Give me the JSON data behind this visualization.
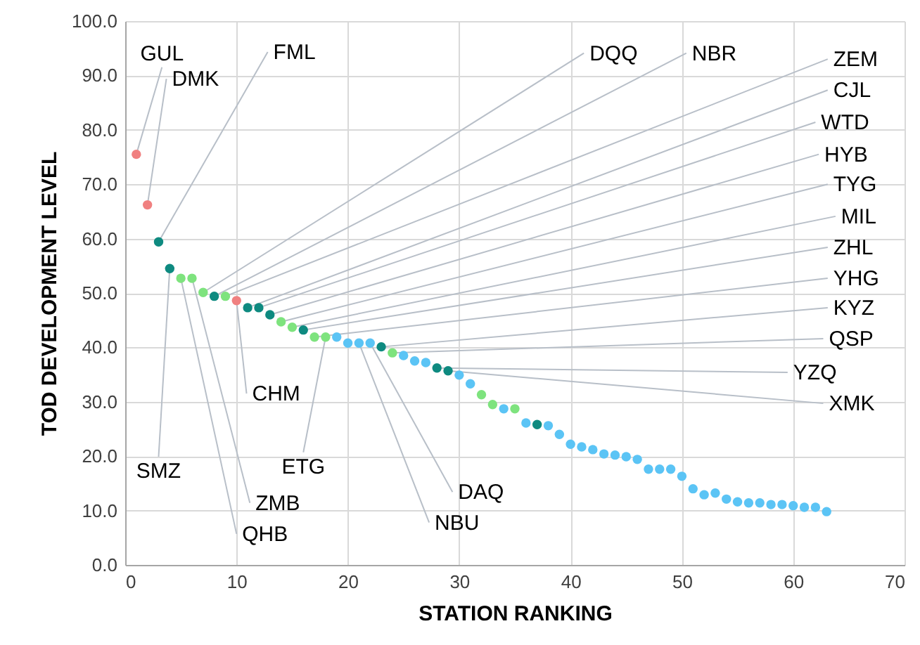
{
  "chart_data": {
    "type": "scatter",
    "xlabel": "STATION RANKING",
    "ylabel": "TOD DEVELOPMENT LEVEL",
    "x": [
      1,
      2,
      3,
      4,
      5,
      6,
      7,
      8,
      9,
      10,
      11,
      12,
      13,
      14,
      15,
      16,
      17,
      18,
      19,
      20,
      21,
      22,
      23,
      24,
      25,
      26,
      27,
      28,
      29,
      30,
      31,
      32,
      33,
      34,
      35,
      36,
      37,
      38,
      39,
      40,
      41,
      42,
      43,
      44,
      45,
      46,
      47,
      48,
      49,
      50,
      51,
      52,
      53,
      54,
      55,
      56,
      57,
      58,
      59,
      60,
      61,
      62,
      63
    ],
    "values": [
      75.5,
      66.2,
      59.4,
      54.5,
      52.7,
      52.7,
      50.1,
      49.4,
      49.4,
      48.6,
      47.3,
      47.3,
      46.0,
      44.7,
      43.7,
      43.2,
      41.9,
      41.9,
      41.9,
      40.8,
      40.8,
      40.8,
      40.1,
      39.0,
      38.5,
      37.5,
      37.2,
      36.2,
      35.7,
      34.9,
      33.3,
      31.3,
      29.5,
      28.7,
      28.7,
      26.1,
      25.8,
      25.6,
      24.0,
      22.2,
      21.7,
      21.2,
      20.4,
      20.2,
      19.9,
      19.4,
      17.6,
      17.6,
      17.6,
      16.3,
      14.0,
      12.9,
      13.2,
      12.1,
      11.6,
      11.4,
      11.4,
      11.1,
      11.1,
      10.9,
      10.6,
      10.6,
      9.8
    ],
    "colors": [
      "#f08080",
      "#f08080",
      "#0e8a80",
      "#0e8a80",
      "#7ee37e",
      "#7ee37e",
      "#7ee37e",
      "#0e8a80",
      "#7ee37e",
      "#f08080",
      "#0e8a80",
      "#0e8a80",
      "#0e8a80",
      "#7ee37e",
      "#7ee37e",
      "#0e8a80",
      "#7ee37e",
      "#7ee37e",
      "#5bc4f5",
      "#5bc4f5",
      "#5bc4f5",
      "#5bc4f5",
      "#0e8a80",
      "#7ee37e",
      "#5bc4f5",
      "#5bc4f5",
      "#5bc4f5",
      "#0e8a80",
      "#0e8a80",
      "#5bc4f5",
      "#5bc4f5",
      "#7ee37e",
      "#7ee37e",
      "#5bc4f5",
      "#7ee37e",
      "#5bc4f5",
      "#0e8a80",
      "#5bc4f5",
      "#5bc4f5",
      "#5bc4f5",
      "#5bc4f5",
      "#5bc4f5",
      "#5bc4f5",
      "#5bc4f5",
      "#5bc4f5",
      "#5bc4f5",
      "#5bc4f5",
      "#5bc4f5",
      "#5bc4f5",
      "#5bc4f5",
      "#5bc4f5",
      "#5bc4f5",
      "#5bc4f5",
      "#5bc4f5",
      "#5bc4f5",
      "#5bc4f5",
      "#5bc4f5",
      "#5bc4f5",
      "#5bc4f5",
      "#5bc4f5",
      "#5bc4f5",
      "#5bc4f5",
      "#5bc4f5"
    ],
    "annotations": [
      {
        "text": "GUL",
        "x": 1,
        "y": 75.5
      },
      {
        "text": "DMK",
        "x": 2,
        "y": 66.2
      },
      {
        "text": "FML",
        "x": 3,
        "y": 59.4
      },
      {
        "text": "DQQ",
        "x": 7,
        "y": 50.1
      },
      {
        "text": "NBR",
        "x": 8,
        "y": 49.4
      },
      {
        "text": "ZEM",
        "x": 9,
        "y": 49.4
      },
      {
        "text": "CJL",
        "x": 11,
        "y": 47.3
      },
      {
        "text": "WTD",
        "x": 12,
        "y": 47.3
      },
      {
        "text": "HYB",
        "x": 13,
        "y": 46.0
      },
      {
        "text": "TYG",
        "x": 14,
        "y": 44.7
      },
      {
        "text": "MIL",
        "x": 15,
        "y": 43.7
      },
      {
        "text": "ZHL",
        "x": 16,
        "y": 43.2
      },
      {
        "text": "YHG",
        "x": 17,
        "y": 41.9
      },
      {
        "text": "KYZ",
        "x": 23,
        "y": 40.1
      },
      {
        "text": "QSP",
        "x": 24,
        "y": 39.0
      },
      {
        "text": "YZQ",
        "x": 28,
        "y": 36.2
      },
      {
        "text": "XMK",
        "x": 29,
        "y": 35.7
      },
      {
        "text": "SMZ",
        "x": 4,
        "y": 54.5
      },
      {
        "text": "ZMB",
        "x": 6,
        "y": 52.7
      },
      {
        "text": "QHB",
        "x": 5,
        "y": 52.7
      },
      {
        "text": "CHM",
        "x": 10,
        "y": 48.6
      },
      {
        "text": "ETG",
        "x": 18,
        "y": 41.9
      },
      {
        "text": "DAQ",
        "x": 22,
        "y": 40.8
      },
      {
        "text": "NBU",
        "x": 21,
        "y": 40.8
      }
    ],
    "xlim": [
      0,
      70
    ],
    "xticks": [
      0,
      10,
      20,
      30,
      40,
      50,
      60,
      70
    ],
    "ylim": [
      0,
      100
    ],
    "yticks": [
      {
        "value": 0,
        "label": "0.0"
      },
      {
        "value": 10,
        "label": "10.0"
      },
      {
        "value": 20,
        "label": "20.0"
      },
      {
        "value": 30,
        "label": "30.0"
      },
      {
        "value": 40,
        "label": "40.0"
      },
      {
        "value": 50,
        "label": "50.0"
      },
      {
        "value": 60,
        "label": "60.0"
      },
      {
        "value": 70,
        "label": "70.0"
      },
      {
        "value": 80,
        "label": "80.0"
      },
      {
        "value": 90,
        "label": "90.0"
      },
      {
        "value": 100,
        "label": "100.0"
      }
    ],
    "grid": true,
    "marker": "circle"
  }
}
